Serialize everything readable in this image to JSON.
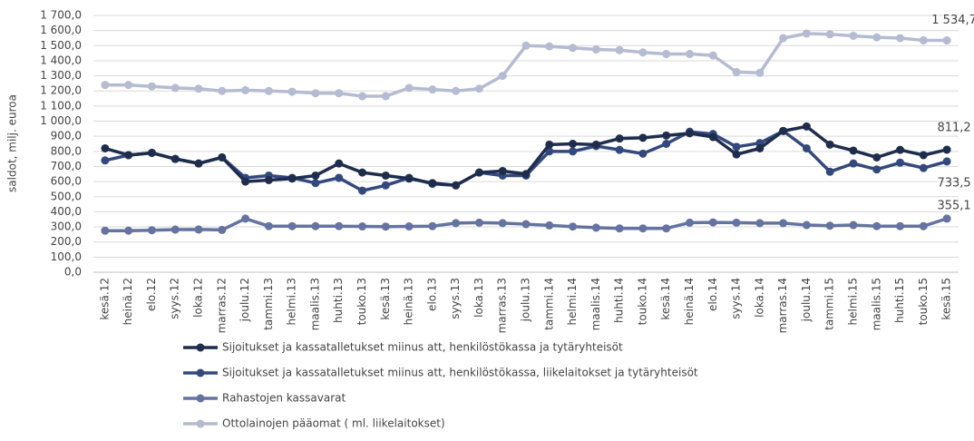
{
  "chart_data": {
    "type": "line",
    "y_axis_label": "saldot, milj. euroa",
    "categories": [
      "kesä.12",
      "heinä.12",
      "elo.12",
      "syys.12",
      "loka.12",
      "marras.12",
      "joulu.12",
      "tammi.13",
      "helmi.13",
      "maalis.13",
      "huhti.13",
      "touko.13",
      "kesä.13",
      "heinä.13",
      "elo.13",
      "syys.13",
      "loka.13",
      "marras.13",
      "joulu.13",
      "tammi.14",
      "helmi.14",
      "maalis.14",
      "huhti.14",
      "touko.14",
      "kesä.14",
      "heinä.14",
      "elo.14",
      "syys.14",
      "loka.14",
      "marras.14",
      "joulu.14",
      "tammi.15",
      "helmi.15",
      "maalis.15",
      "huhti.15",
      "touko.15",
      "kesä.15"
    ],
    "series": [
      {
        "name": "Sijoitukset ja kassatalletukset miinus att, henkilöstökassa ja tytäryhteisöt",
        "color": "#1f2d4d",
        "values": [
          820,
          775,
          790,
          750,
          720,
          760,
          600,
          610,
          620,
          640,
          720,
          660,
          640,
          620,
          590,
          575,
          660,
          670,
          650,
          845,
          850,
          845,
          885,
          890,
          905,
          920,
          895,
          780,
          820,
          935,
          965,
          845,
          805,
          760,
          810,
          775,
          811.2
        ],
        "value_labels": [
          null,
          null,
          null,
          null,
          null,
          null,
          null,
          null,
          null,
          null,
          null,
          null,
          null,
          null,
          null,
          null,
          null,
          null,
          null,
          null,
          null,
          null,
          null,
          null,
          null,
          null,
          null,
          null,
          null,
          null,
          null,
          null,
          null,
          null,
          null,
          null,
          "811,2"
        ]
      },
      {
        "name": "Sijoitukset ja kassatalletukset miinus att, henkilöstökassa, liikelaitokset ja tytäryhteisöt",
        "color": "#33497e",
        "values": [
          740,
          775,
          790,
          750,
          720,
          760,
          625,
          640,
          625,
          590,
          625,
          540,
          575,
          625,
          585,
          575,
          660,
          640,
          640,
          800,
          800,
          835,
          810,
          785,
          850,
          930,
          915,
          830,
          855,
          935,
          820,
          665,
          720,
          680,
          725,
          690,
          733.5
        ],
        "value_labels": [
          null,
          null,
          null,
          null,
          null,
          null,
          null,
          null,
          null,
          null,
          null,
          null,
          null,
          null,
          null,
          null,
          null,
          null,
          null,
          null,
          null,
          null,
          null,
          null,
          null,
          null,
          null,
          null,
          null,
          null,
          null,
          null,
          null,
          null,
          null,
          null,
          "733,5"
        ]
      },
      {
        "name": "Rahastojen kassavarat",
        "color": "#6573a0",
        "values": [
          275,
          275,
          278,
          282,
          283,
          280,
          355,
          305,
          305,
          305,
          305,
          303,
          302,
          303,
          305,
          325,
          328,
          325,
          318,
          310,
          302,
          295,
          290,
          290,
          290,
          328,
          330,
          328,
          325,
          325,
          312,
          308,
          312,
          305,
          305,
          305,
          355.1
        ],
        "value_labels": [
          null,
          null,
          null,
          null,
          null,
          null,
          null,
          null,
          null,
          null,
          null,
          null,
          null,
          null,
          null,
          null,
          null,
          null,
          null,
          null,
          null,
          null,
          null,
          null,
          null,
          null,
          null,
          null,
          null,
          null,
          null,
          null,
          null,
          null,
          null,
          null,
          "355,1"
        ]
      },
      {
        "name": "Ottolainojen pääomat ( ml. liikelaitokset)",
        "color": "#b5bbd1",
        "values": [
          1240,
          1240,
          1230,
          1220,
          1215,
          1200,
          1205,
          1200,
          1195,
          1185,
          1185,
          1165,
          1165,
          1220,
          1210,
          1200,
          1215,
          1300,
          1500,
          1495,
          1485,
          1475,
          1470,
          1455,
          1445,
          1445,
          1435,
          1325,
          1320,
          1550,
          1580,
          1575,
          1565,
          1555,
          1550,
          1535,
          1534.7
        ],
        "value_labels": [
          null,
          null,
          null,
          null,
          null,
          null,
          null,
          null,
          null,
          null,
          null,
          null,
          null,
          null,
          null,
          null,
          null,
          null,
          null,
          null,
          null,
          null,
          null,
          null,
          null,
          null,
          null,
          null,
          null,
          null,
          null,
          null,
          null,
          null,
          null,
          null,
          "1 534,7"
        ]
      }
    ],
    "ylim": [
      0,
      1700
    ],
    "yticks": [
      {
        "value": 0,
        "label": "0,0"
      },
      {
        "value": 100,
        "label": "100,0"
      },
      {
        "value": 200,
        "label": "200,0"
      },
      {
        "value": 300,
        "label": "300,0"
      },
      {
        "value": 400,
        "label": "400,0"
      },
      {
        "value": 500,
        "label": "500,0"
      },
      {
        "value": 600,
        "label": "600,0"
      },
      {
        "value": 700,
        "label": "700,0"
      },
      {
        "value": 800,
        "label": "800,0"
      },
      {
        "value": 900,
        "label": "900,0"
      },
      {
        "value": 1000,
        "label": "1 000,0"
      },
      {
        "value": 1100,
        "label": "1 100,0"
      },
      {
        "value": 1200,
        "label": "1 200,0"
      },
      {
        "value": 1300,
        "label": "1 300,0"
      },
      {
        "value": 1400,
        "label": "1 400,0"
      },
      {
        "value": 1500,
        "label": "1 500,0"
      },
      {
        "value": 1600,
        "label": "1 600,0"
      },
      {
        "value": 1700,
        "label": "1 700,0"
      }
    ],
    "grid": true
  }
}
